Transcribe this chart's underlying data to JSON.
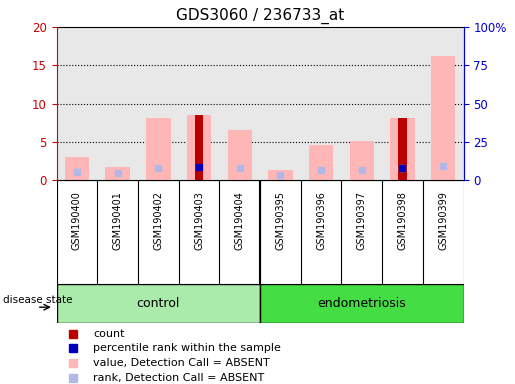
{
  "title": "GDS3060 / 236733_at",
  "samples": [
    "GSM190400",
    "GSM190401",
    "GSM190402",
    "GSM190403",
    "GSM190404",
    "GSM190395",
    "GSM190396",
    "GSM190397",
    "GSM190398",
    "GSM190399"
  ],
  "value_absent": [
    3.0,
    1.7,
    8.2,
    8.5,
    6.6,
    1.4,
    4.6,
    5.1,
    8.2,
    16.2
  ],
  "rank_absent": [
    5.7,
    4.9,
    8.3,
    null,
    8.1,
    3.7,
    6.9,
    6.6,
    8.2,
    9.7
  ],
  "count_red": [
    null,
    null,
    null,
    8.5,
    null,
    null,
    null,
    null,
    8.2,
    null
  ],
  "percentile_blue": [
    null,
    null,
    null,
    8.5,
    null,
    null,
    null,
    null,
    8.2,
    null
  ],
  "left_yticks": [
    0,
    5,
    10,
    15,
    20
  ],
  "right_ytick_labels": [
    "0",
    "25",
    "50",
    "75",
    "100%"
  ],
  "grid_lines": [
    5,
    10,
    15
  ],
  "bg_color": "#e8e8e8",
  "bar_color_pink": "#ffb6b6",
  "bar_color_lightblue": "#b0b8e8",
  "bar_color_red": "#bb0000",
  "bar_color_blue": "#0000bb",
  "control_color": "#aaeaaa",
  "endometriosis_color": "#44dd44",
  "label_color_left": "#cc0000",
  "label_color_right": "#0000cc",
  "group_label": "disease state"
}
